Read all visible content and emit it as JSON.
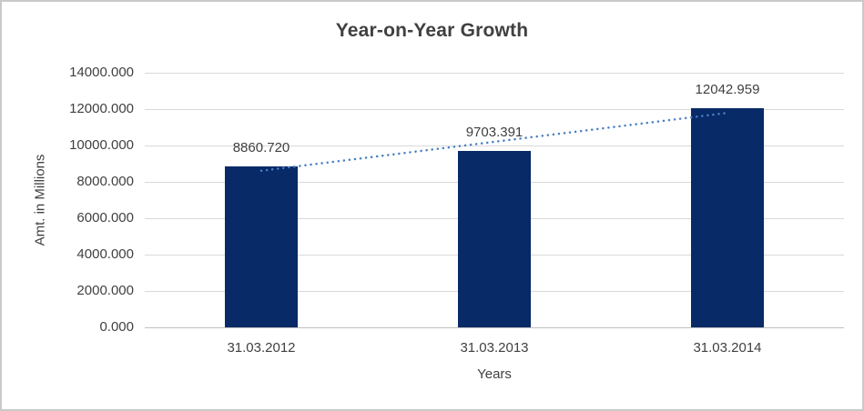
{
  "window": {
    "background_color": "#ffffff",
    "border_color": "#c9c9c9"
  },
  "chart_data": {
    "type": "bar",
    "title": "Year-on-Year Growth",
    "xlabel": "Years",
    "ylabel": "Amt. in Millions",
    "categories": [
      "31.03.2012",
      "31.03.2013",
      "31.03.2014"
    ],
    "values": [
      8860.72,
      9703.391,
      12042.959
    ],
    "data_labels": [
      "8860.720",
      "9703.391",
      "12042.959"
    ],
    "ylim": [
      0,
      14000
    ],
    "ytick_step": 2000,
    "yticks": [
      {
        "value": 14000,
        "label": "14000.000"
      },
      {
        "value": 12000,
        "label": "12000.000"
      },
      {
        "value": 10000,
        "label": "10000.000"
      },
      {
        "value": 8000,
        "label": "8000.000"
      },
      {
        "value": 6000,
        "label": "6000.000"
      },
      {
        "value": 4000,
        "label": "4000.000"
      },
      {
        "value": 2000,
        "label": "2000.000"
      },
      {
        "value": 0,
        "label": "0.000"
      }
    ],
    "grid": true,
    "legend_position": "none",
    "colors": {
      "bar": "#082a66",
      "trendline": "#4a80c4",
      "gridline": "#d9d9d9",
      "axis_line": "#bfbfbf",
      "text": "#404040",
      "title_text": "#404040"
    },
    "trendline": {
      "type": "linear",
      "style": "dotted",
      "span": "first-bar-center-to-last-bar-center"
    }
  }
}
